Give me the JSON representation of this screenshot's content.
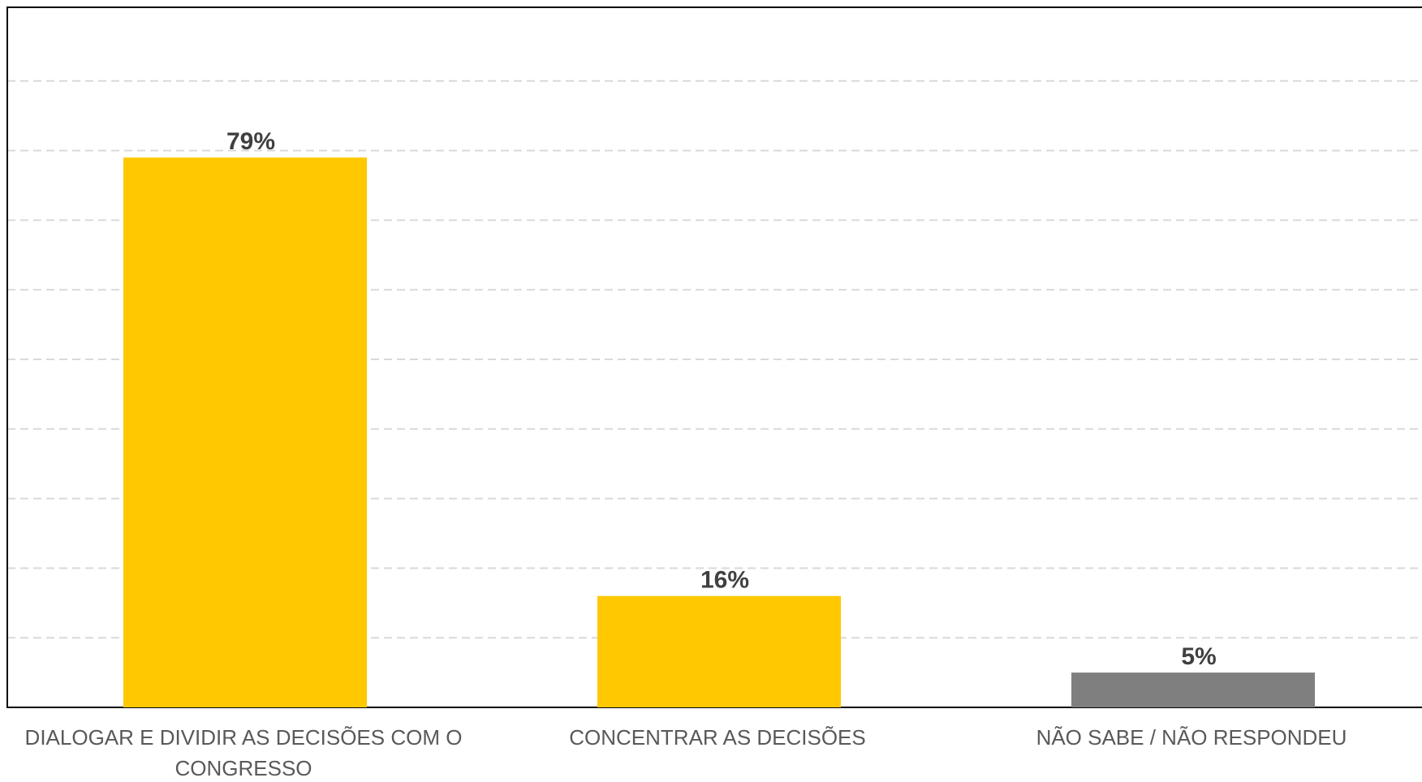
{
  "chart_data": {
    "type": "bar",
    "categories": [
      "DIALOGAR E DIVIDIR AS DECISÕES COM O CONGRESSO",
      "CONCENTRAR AS DECISÕES",
      "NÃO SABE / NÃO RESPONDEU"
    ],
    "category_lines": [
      [
        "DIALOGAR E DIVIDIR AS DECISÕES COM O",
        "CONGRESSO"
      ],
      [
        "CONCENTRAR AS DECISÕES"
      ],
      [
        "NÃO SABE / NÃO RESPONDEU"
      ]
    ],
    "values": [
      79,
      16,
      5
    ],
    "value_labels": [
      "79%",
      "16%",
      "5%"
    ],
    "bar_colors": [
      "#FFC800",
      "#FFC800",
      "#7F7F7F"
    ],
    "ylim": [
      0,
      90
    ],
    "y_grid_step": 10,
    "grid": true,
    "grid_style": "dashed",
    "legend": "none",
    "title": "",
    "xlabel": "",
    "ylabel": ""
  }
}
